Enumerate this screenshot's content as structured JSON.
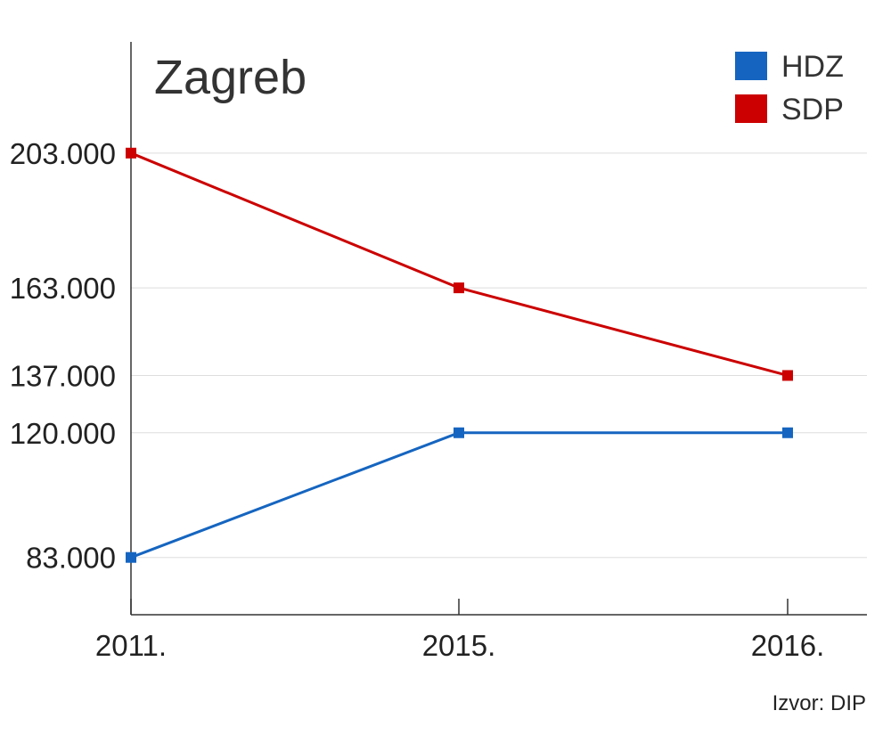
{
  "chart_data": {
    "type": "line",
    "title": "Zagreb",
    "xlabel": "",
    "ylabel": "",
    "categories": [
      "2011.",
      "2015.",
      "2016."
    ],
    "y_ticks": [
      "203.000",
      "163.000",
      "137.000",
      "120.000",
      "83.000"
    ],
    "y_tick_values": [
      203000,
      163000,
      137000,
      120000,
      83000
    ],
    "ylim": [
      66000,
      236000
    ],
    "grid": true,
    "legend_position": "top-right",
    "series": [
      {
        "name": "HDZ",
        "color": "#1565c0",
        "values": [
          83000,
          120000,
          120000
        ]
      },
      {
        "name": "SDP",
        "color": "#cc0000",
        "values": [
          203000,
          163000,
          137000
        ]
      }
    ],
    "source": "Izvor: DIP"
  }
}
